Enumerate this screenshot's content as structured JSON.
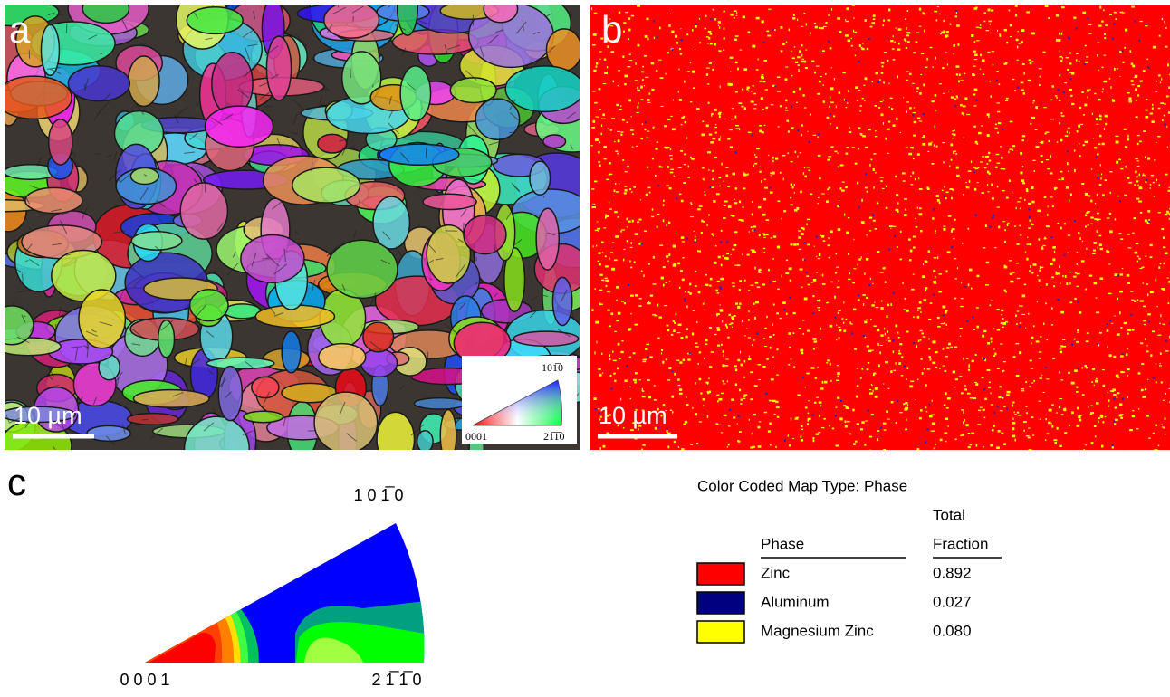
{
  "panels": [
    {
      "label": "a",
      "scale_bar": "10 µm",
      "ipf_labels": {
        "top": "101̅0",
        "left": "0001",
        "right": "21̅1̅0"
      }
    },
    {
      "label": "b",
      "scale_bar": "10 µm"
    },
    {
      "label": "c",
      "ipf_labels": {
        "top": "1 0 1̅ 0",
        "left": "0 0 0 1",
        "right": "2 1̅ 1̅ 0"
      }
    }
  ],
  "legend": {
    "title": "Color Coded Map Type: Phase",
    "header": {
      "total": "Total",
      "phase": "Phase",
      "fraction": "Fraction"
    },
    "rows": [
      {
        "color": "#ff0000",
        "phase": "Zinc",
        "fraction": "0.892"
      },
      {
        "color": "#000080",
        "phase": "Aluminum",
        "fraction": "0.027"
      },
      {
        "color": "#ffff00",
        "phase": "Magnesium Zinc",
        "fraction": "0.080"
      }
    ]
  }
}
